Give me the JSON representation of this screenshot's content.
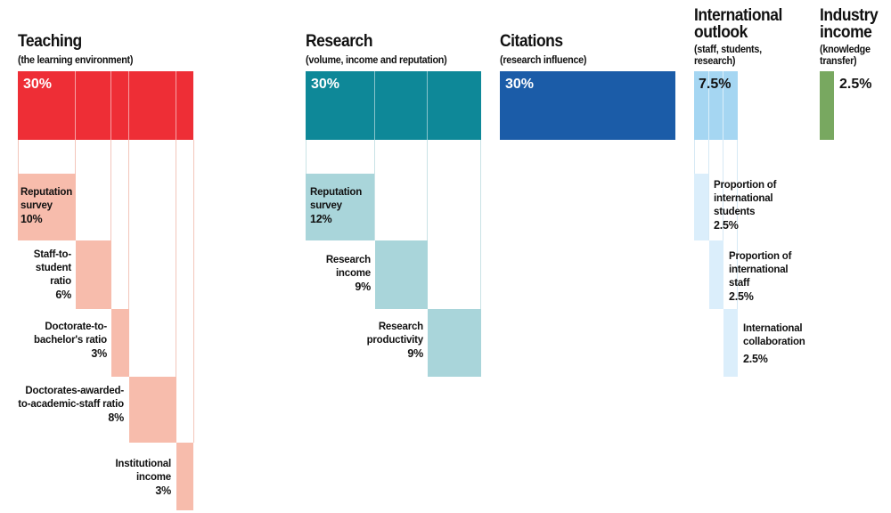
{
  "teaching": {
    "title": "Teaching",
    "subtitle": "(the learning environment)",
    "total": "30%",
    "items": [
      {
        "label": "Reputation survey",
        "value": "10%"
      },
      {
        "label": "Staff-to-student ratio",
        "value": "6%"
      },
      {
        "label": "Doctorate-to-bachelor's ratio",
        "value": "3%"
      },
      {
        "label": "Doctorates-awarded-to-academic-staff ratio",
        "value": "8%"
      },
      {
        "label": "Institutional income",
        "value": "3%"
      }
    ]
  },
  "research": {
    "title": "Research",
    "subtitle": "(volume, income and reputation)",
    "total": "30%",
    "items": [
      {
        "label": "Reputation survey",
        "value": "12%"
      },
      {
        "label": "Research income",
        "value": "9%"
      },
      {
        "label": "Research productivity",
        "value": "9%"
      }
    ]
  },
  "citations": {
    "title": "Citations",
    "subtitle": "(research influence)",
    "total": "30%"
  },
  "international": {
    "title_line1": "International",
    "title_line2": "outlook",
    "subtitle_line1": "(staff, students,",
    "subtitle_line2": "research)",
    "total": "7.5%",
    "items": [
      {
        "label": "Proportion of international students",
        "value": "2.5%"
      },
      {
        "label": "Proportion of international staff",
        "value": "2.5%"
      },
      {
        "label": "International collaboration",
        "value": "2.5%"
      }
    ]
  },
  "industry": {
    "title_line1": "Industry",
    "title_line2": "income",
    "subtitle_line1": "(knowledge",
    "subtitle_line2": "transfer)",
    "total": "2.5%"
  },
  "colors": {
    "teaching": "#ee2e36",
    "teaching_light": "#f7bcac",
    "research": "#0e8898",
    "research_light": "#a9d5da",
    "citations": "#1b5ca8",
    "international": "#a5d6f2",
    "international_light": "#dbeefb",
    "industry": "#78a860"
  }
}
